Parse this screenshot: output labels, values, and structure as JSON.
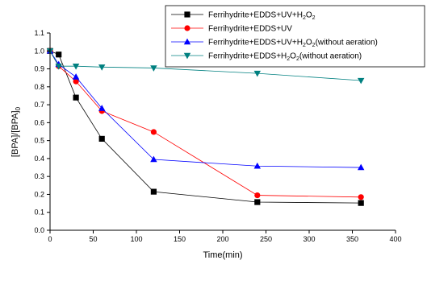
{
  "chart_data": {
    "type": "line",
    "xlabel": "Time(min)",
    "ylabel": "[BPA]/[BPA]",
    "ylabel_subscript": "0",
    "xlim": [
      0,
      400
    ],
    "ylim": [
      0.0,
      1.1
    ],
    "xticks": [
      "0",
      "50",
      "100",
      "150",
      "200",
      "250",
      "300",
      "350",
      "400"
    ],
    "yticks": [
      "0.0",
      "0.1",
      "0.2",
      "0.3",
      "0.4",
      "0.5",
      "0.6",
      "0.7",
      "0.8",
      "0.9",
      "1.0",
      "1.1"
    ],
    "grid": false,
    "legend_position": "top-right",
    "series": [
      {
        "name": "Ferrihydrite+EDDS+UV+H2O2",
        "name_parts": [
          "Ferrihydrite+EDDS+UV+H",
          "2",
          "O",
          "2",
          ""
        ],
        "color": "#000000",
        "marker": "square",
        "x": [
          0,
          10,
          30,
          60,
          120,
          240,
          360
        ],
        "y": [
          1.0,
          0.98,
          0.74,
          0.51,
          0.215,
          0.157,
          0.152
        ]
      },
      {
        "name": "Ferrihydrite+EDDS+UV",
        "name_parts": [
          "Ferrihydrite+EDDS+UV"
        ],
        "color": "#ff0000",
        "marker": "circle",
        "x": [
          0,
          10,
          30,
          60,
          120,
          240,
          360
        ],
        "y": [
          1.0,
          0.915,
          0.83,
          0.665,
          0.548,
          0.195,
          0.185
        ]
      },
      {
        "name": "Ferrihydrite+EDDS+UV+H2O2(without aeration)",
        "name_parts": [
          "Ferrihydrite+EDDS+UV+H",
          "2",
          "O",
          "2",
          "(without aeration)"
        ],
        "color": "#0000ff",
        "marker": "triangle-up",
        "x": [
          0,
          10,
          30,
          60,
          120,
          240,
          360
        ],
        "y": [
          1.0,
          0.925,
          0.855,
          0.68,
          0.395,
          0.358,
          0.35
        ]
      },
      {
        "name": "Ferrihydrite+EDDS+H2O2(without aeration)",
        "name_parts": [
          "Ferrihydrite+EDDS+H",
          "2",
          "O",
          "2",
          "(without aeration)"
        ],
        "color": "#008080",
        "marker": "triangle-down",
        "x": [
          0,
          10,
          30,
          60,
          120,
          240,
          360
        ],
        "y": [
          1.0,
          0.915,
          0.915,
          0.91,
          0.905,
          0.875,
          0.835
        ]
      }
    ]
  }
}
